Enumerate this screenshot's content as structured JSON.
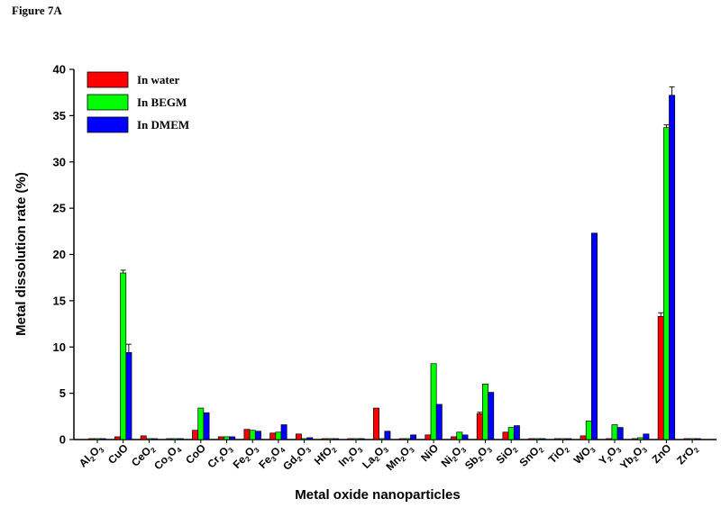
{
  "figure_label": "Figure 7A",
  "chart_data": {
    "type": "bar",
    "title": "",
    "xlabel": "Metal oxide nanoparticles",
    "ylabel": "Metal dissolution rate (%)",
    "ylim": [
      0,
      40
    ],
    "yticks": [
      0,
      5,
      10,
      15,
      20,
      25,
      30,
      35,
      40
    ],
    "legend_position": "top-left",
    "categories": [
      {
        "name": "Al2O3",
        "base": "Al",
        "sub1": "2",
        "mid": "O",
        "sub2": "3"
      },
      {
        "name": "CuO",
        "base": "CuO",
        "sub1": "",
        "mid": "",
        "sub2": ""
      },
      {
        "name": "CeO2",
        "base": "CeO",
        "sub1": "2",
        "mid": "",
        "sub2": ""
      },
      {
        "name": "Co3O4",
        "base": "Co",
        "sub1": "3",
        "mid": "O",
        "sub2": "4"
      },
      {
        "name": "CoO",
        "base": "CoO",
        "sub1": "",
        "mid": "",
        "sub2": ""
      },
      {
        "name": "Cr2O3",
        "base": "Cr",
        "sub1": "2",
        "mid": "O",
        "sub2": "3"
      },
      {
        "name": "Fe2O3",
        "base": "Fe",
        "sub1": "2",
        "mid": "O",
        "sub2": "3"
      },
      {
        "name": "Fe3O4",
        "base": "Fe",
        "sub1": "3",
        "mid": "O",
        "sub2": "4"
      },
      {
        "name": "Gd2O3",
        "base": "Gd",
        "sub1": "2",
        "mid": "O",
        "sub2": "3"
      },
      {
        "name": "HfO2",
        "base": "HfO",
        "sub1": "2",
        "mid": "",
        "sub2": ""
      },
      {
        "name": "In2O3",
        "base": "In",
        "sub1": "2",
        "mid": "O",
        "sub2": "3"
      },
      {
        "name": "La2O3",
        "base": "La",
        "sub1": "2",
        "mid": "O",
        "sub2": "3"
      },
      {
        "name": "Mn2O3",
        "base": "Mn",
        "sub1": "2",
        "mid": "O",
        "sub2": "3"
      },
      {
        "name": "NiO",
        "base": "NiO",
        "sub1": "",
        "mid": "",
        "sub2": ""
      },
      {
        "name": "Ni2O3",
        "base": "Ni",
        "sub1": "2",
        "mid": "O",
        "sub2": "3"
      },
      {
        "name": "Sb2O3",
        "base": "Sb",
        "sub1": "2",
        "mid": "O",
        "sub2": "3"
      },
      {
        "name": "SiO2",
        "base": "SiO",
        "sub1": "2",
        "mid": "",
        "sub2": ""
      },
      {
        "name": "SnO2",
        "base": "SnO",
        "sub1": "2",
        "mid": "",
        "sub2": ""
      },
      {
        "name": "TiO2",
        "base": "TiO",
        "sub1": "2",
        "mid": "",
        "sub2": ""
      },
      {
        "name": "WO3",
        "base": "WO",
        "sub1": "3",
        "mid": "",
        "sub2": ""
      },
      {
        "name": "Y2O3",
        "base": "Y",
        "sub1": "2",
        "mid": "O",
        "sub2": "3"
      },
      {
        "name": "Yb2O3",
        "base": "Yb",
        "sub1": "2",
        "mid": "O",
        "sub2": "3"
      },
      {
        "name": "ZnO",
        "base": "ZnO",
        "sub1": "",
        "mid": "",
        "sub2": ""
      },
      {
        "name": "ZrO2",
        "base": "ZrO",
        "sub1": "2",
        "mid": "",
        "sub2": ""
      }
    ],
    "series": [
      {
        "name": "In water",
        "color": "#ff0000",
        "values": [
          0.1,
          0.3,
          0.4,
          0.1,
          1.0,
          0.3,
          1.1,
          0.7,
          0.6,
          0.1,
          0.1,
          3.4,
          0.1,
          0.5,
          0.3,
          2.8,
          0.8,
          0.1,
          0.1,
          0.4,
          0.1,
          0.1,
          13.3,
          0.1
        ],
        "errors": [
          0,
          0,
          0,
          0,
          0,
          0,
          0,
          0,
          0,
          0,
          0,
          0,
          0,
          0,
          0,
          0.15,
          0,
          0,
          0,
          0,
          0,
          0,
          0.4,
          0
        ]
      },
      {
        "name": "In BEGM",
        "color": "#00ff00",
        "values": [
          0.1,
          18.0,
          0.1,
          0.1,
          3.4,
          0.3,
          1.0,
          0.8,
          0.1,
          0.1,
          0.1,
          0.1,
          0.1,
          8.2,
          0.8,
          6.0,
          1.3,
          0.1,
          0.1,
          2.0,
          1.6,
          0.2,
          33.7,
          0.1
        ],
        "errors": [
          0,
          0.3,
          0,
          0,
          0,
          0,
          0,
          0,
          0,
          0,
          0,
          0,
          0,
          0,
          0,
          0,
          0,
          0,
          0,
          0,
          0,
          0,
          0.3,
          0
        ]
      },
      {
        "name": "In DMEM",
        "color": "#0000ff",
        "values": [
          0.1,
          9.4,
          0.1,
          0.1,
          2.9,
          0.3,
          0.9,
          1.6,
          0.2,
          0.1,
          0.1,
          0.9,
          0.5,
          3.8,
          0.5,
          5.1,
          1.5,
          0.1,
          0.1,
          22.3,
          1.3,
          0.6,
          37.2,
          0.1
        ],
        "errors": [
          0,
          0.9,
          0,
          0,
          0,
          0,
          0,
          0,
          0,
          0,
          0,
          0,
          0,
          0,
          0,
          0,
          0,
          0,
          0,
          0,
          0,
          0,
          0.9,
          0
        ]
      }
    ]
  }
}
